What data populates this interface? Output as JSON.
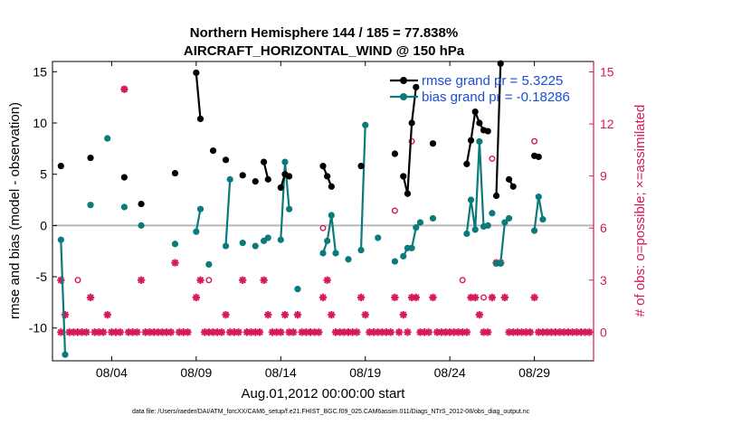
{
  "chart_data": {
    "type": "line",
    "title": [
      "Northern Hemisphere 144 / 185 = 77.838%",
      "AIRCRAFT_HORIZONTAL_WIND @ 150 hPa"
    ],
    "xlabel": "Aug.01,2012 00:00:00 start",
    "ylabel_left": "rmse and bias (model - observation)",
    "ylabel_right": "# of obs: o=possible; ×=assimilated",
    "xlim": [
      0.5,
      32.5
    ],
    "ylim_left": [
      -13.2,
      16
    ],
    "ylim_right": [
      -1.65,
      15.6
    ],
    "x_ticks": [
      4,
      9,
      14,
      19,
      24,
      29
    ],
    "x_tick_labels": [
      "08/04",
      "08/09",
      "08/14",
      "08/19",
      "08/24",
      "08/29"
    ],
    "y_ticks_left": [
      -10,
      -5,
      0,
      5,
      10,
      15
    ],
    "y_ticks_right": [
      0,
      3,
      6,
      9,
      12,
      15
    ],
    "colors": {
      "rmse": "#000000",
      "bias": "#0a7a7a",
      "obs": "#d6185e",
      "zero": "#b8b8b8",
      "legend_text": "#1a4fd6"
    },
    "legend": [
      {
        "label": "rmse grand pr = 5.3225",
        "series": "rmse"
      },
      {
        "label": "bias grand pr = -0.18286",
        "series": "bias"
      }
    ],
    "series": [
      {
        "name": "rmse",
        "axis": "left",
        "segments": [
          [
            [
              1.0,
              5.8
            ]
          ],
          [
            [
              2.75,
              6.6
            ]
          ],
          [
            [
              4.75,
              4.7
            ]
          ],
          [
            [
              5.75,
              2.1
            ]
          ],
          [
            [
              7.75,
              5.1
            ]
          ],
          [
            [
              9.0,
              14.9
            ],
            [
              9.25,
              10.4
            ]
          ],
          [
            [
              10.0,
              7.3
            ]
          ],
          [
            [
              10.75,
              6.4
            ]
          ],
          [
            [
              11.75,
              4.9
            ]
          ],
          [
            [
              12.5,
              4.3
            ]
          ],
          [
            [
              13.0,
              6.2
            ],
            [
              13.25,
              4.5
            ]
          ],
          [
            [
              14.0,
              3.7
            ],
            [
              14.25,
              5.0
            ],
            [
              14.5,
              4.8
            ]
          ],
          [
            [
              16.5,
              5.8
            ],
            [
              16.75,
              4.8
            ],
            [
              17.0,
              3.8
            ]
          ],
          [
            [
              18.75,
              5.8
            ]
          ],
          [
            [
              20.75,
              7.0
            ]
          ],
          [
            [
              21.25,
              4.8
            ],
            [
              21.5,
              3.1
            ],
            [
              21.75,
              10.0
            ],
            [
              22.0,
              13.5
            ]
          ],
          [
            [
              23.0,
              8.0
            ]
          ],
          [
            [
              25.0,
              6.0
            ],
            [
              25.25,
              8.3
            ],
            [
              25.5,
              11.1
            ],
            [
              25.75,
              10.0
            ],
            [
              26.0,
              9.3
            ],
            [
              26.25,
              9.2
            ]
          ],
          [
            [
              26.75,
              2.9
            ],
            [
              27.0,
              15.8
            ]
          ],
          [
            [
              27.5,
              4.5
            ],
            [
              27.75,
              3.8
            ]
          ],
          [
            [
              29.0,
              6.8
            ],
            [
              29.25,
              6.7
            ]
          ]
        ]
      },
      {
        "name": "bias",
        "axis": "left",
        "segments": [
          [
            [
              1.0,
              -1.4
            ],
            [
              1.25,
              -12.6
            ]
          ],
          [
            [
              2.75,
              2.0
            ]
          ],
          [
            [
              3.75,
              8.5
            ]
          ],
          [
            [
              4.75,
              1.8
            ]
          ],
          [
            [
              5.75,
              0.0
            ]
          ],
          [
            [
              7.75,
              -1.8
            ]
          ],
          [
            [
              9.0,
              -0.6
            ],
            [
              9.25,
              1.6
            ]
          ],
          [
            [
              9.75,
              -3.8
            ]
          ],
          [
            [
              10.75,
              -2.0
            ],
            [
              11.0,
              4.5
            ]
          ],
          [
            [
              11.75,
              -1.7
            ]
          ],
          [
            [
              12.5,
              -2.0
            ]
          ],
          [
            [
              13.0,
              -1.5
            ],
            [
              13.25,
              -1.2
            ]
          ],
          [
            [
              14.0,
              -1.4
            ],
            [
              14.25,
              6.2
            ],
            [
              14.5,
              1.6
            ]
          ],
          [
            [
              15.0,
              -6.2
            ]
          ],
          [
            [
              16.5,
              -2.7
            ],
            [
              16.75,
              -1.5
            ],
            [
              17.0,
              1.0
            ],
            [
              17.25,
              -2.7
            ]
          ],
          [
            [
              18.0,
              -3.3
            ]
          ],
          [
            [
              18.75,
              -2.4
            ],
            [
              19.0,
              9.8
            ]
          ],
          [
            [
              19.75,
              -1.2
            ]
          ],
          [
            [
              20.75,
              -3.5
            ]
          ],
          [
            [
              21.25,
              -3.0
            ],
            [
              21.5,
              -2.2
            ],
            [
              21.75,
              -2.2
            ],
            [
              22.0,
              -0.2
            ],
            [
              22.25,
              0.3
            ]
          ],
          [
            [
              23.0,
              0.7
            ]
          ],
          [
            [
              25.0,
              -0.8
            ],
            [
              25.25,
              2.5
            ],
            [
              25.5,
              -0.4
            ],
            [
              25.75,
              8.2
            ],
            [
              26.0,
              -0.1
            ],
            [
              26.25,
              0.0
            ]
          ],
          [
            [
              26.5,
              1.2
            ]
          ],
          [
            [
              26.75,
              -3.7
            ],
            [
              27.0,
              -3.7
            ],
            [
              27.25,
              0.3
            ],
            [
              27.5,
              0.7
            ]
          ],
          [
            [
              29.0,
              -0.5
            ],
            [
              29.25,
              2.8
            ],
            [
              29.5,
              0.6
            ]
          ]
        ]
      },
      {
        "name": "obs_possible",
        "axis": "right",
        "marker": "circle",
        "points": [
          [
            2.0,
            3
          ],
          [
            4.75,
            14
          ],
          [
            9.75,
            3
          ],
          [
            16.5,
            6
          ],
          [
            20.75,
            7
          ],
          [
            21.75,
            11
          ],
          [
            24.75,
            3
          ],
          [
            26.0,
            2
          ],
          [
            26.5,
            10
          ],
          [
            29.0,
            11
          ]
        ]
      },
      {
        "name": "obs_assimilated",
        "axis": "right",
        "marker": "asterisk",
        "points": [
          [
            1.0,
            3
          ],
          [
            1.0,
            0
          ],
          [
            1.25,
            1
          ],
          [
            1.5,
            0
          ],
          [
            1.75,
            0
          ],
          [
            2.0,
            0
          ],
          [
            2.25,
            0
          ],
          [
            2.5,
            0
          ],
          [
            2.75,
            2
          ],
          [
            3.0,
            0
          ],
          [
            3.25,
            0
          ],
          [
            3.5,
            0
          ],
          [
            3.75,
            1
          ],
          [
            4.0,
            0
          ],
          [
            4.25,
            0
          ],
          [
            4.5,
            0
          ],
          [
            4.75,
            14
          ],
          [
            5.0,
            0
          ],
          [
            5.25,
            0
          ],
          [
            5.5,
            0
          ],
          [
            5.75,
            3
          ],
          [
            6.0,
            0
          ],
          [
            6.25,
            0
          ],
          [
            6.5,
            0
          ],
          [
            6.75,
            0
          ],
          [
            7.0,
            0
          ],
          [
            7.25,
            0
          ],
          [
            7.5,
            0
          ],
          [
            7.75,
            4
          ],
          [
            8.0,
            0
          ],
          [
            8.25,
            0
          ],
          [
            8.5,
            0
          ],
          [
            9.0,
            2
          ],
          [
            9.25,
            3
          ],
          [
            9.5,
            0
          ],
          [
            9.75,
            0
          ],
          [
            10.0,
            0
          ],
          [
            10.25,
            0
          ],
          [
            10.5,
            0
          ],
          [
            10.75,
            1
          ],
          [
            11.0,
            0
          ],
          [
            11.25,
            0
          ],
          [
            11.5,
            0
          ],
          [
            11.75,
            3
          ],
          [
            12.0,
            0
          ],
          [
            12.25,
            0
          ],
          [
            12.5,
            0
          ],
          [
            12.75,
            0
          ],
          [
            13.0,
            3
          ],
          [
            13.25,
            1
          ],
          [
            13.5,
            0
          ],
          [
            13.75,
            0
          ],
          [
            14.0,
            0
          ],
          [
            14.25,
            1
          ],
          [
            14.5,
            0
          ],
          [
            14.75,
            0
          ],
          [
            15.0,
            1
          ],
          [
            15.25,
            0
          ],
          [
            15.5,
            0
          ],
          [
            15.75,
            0
          ],
          [
            16.0,
            0
          ],
          [
            16.25,
            0
          ],
          [
            16.5,
            2
          ],
          [
            16.75,
            3
          ],
          [
            17.0,
            1
          ],
          [
            17.25,
            0
          ],
          [
            17.5,
            0
          ],
          [
            17.75,
            0
          ],
          [
            18.0,
            0
          ],
          [
            18.25,
            0
          ],
          [
            18.5,
            0
          ],
          [
            18.75,
            2
          ],
          [
            19.0,
            1
          ],
          [
            19.25,
            0
          ],
          [
            19.5,
            0
          ],
          [
            19.75,
            0
          ],
          [
            20.0,
            0
          ],
          [
            20.25,
            0
          ],
          [
            20.5,
            0
          ],
          [
            20.75,
            2
          ],
          [
            21.0,
            0
          ],
          [
            21.25,
            1
          ],
          [
            21.5,
            0
          ],
          [
            21.75,
            2
          ],
          [
            22.0,
            2
          ],
          [
            22.25,
            0
          ],
          [
            22.5,
            0
          ],
          [
            22.75,
            0
          ],
          [
            23.0,
            2
          ],
          [
            23.25,
            0
          ],
          [
            23.5,
            0
          ],
          [
            23.75,
            0
          ],
          [
            24.0,
            0
          ],
          [
            24.25,
            0
          ],
          [
            24.5,
            0
          ],
          [
            24.75,
            0
          ],
          [
            25.0,
            0
          ],
          [
            25.25,
            2
          ],
          [
            25.5,
            2
          ],
          [
            25.75,
            1
          ],
          [
            26.0,
            0
          ],
          [
            26.25,
            0
          ],
          [
            26.5,
            2
          ],
          [
            26.75,
            4
          ],
          [
            27.0,
            4
          ],
          [
            27.25,
            2
          ],
          [
            27.5,
            0
          ],
          [
            27.75,
            0
          ],
          [
            28.0,
            0
          ],
          [
            28.25,
            0
          ],
          [
            28.5,
            0
          ],
          [
            28.75,
            0
          ],
          [
            29.0,
            2
          ],
          [
            29.25,
            0
          ],
          [
            29.5,
            0
          ],
          [
            29.75,
            0
          ],
          [
            30.0,
            0
          ],
          [
            30.25,
            0
          ],
          [
            30.5,
            0
          ],
          [
            30.75,
            0
          ],
          [
            31.0,
            0
          ],
          [
            31.25,
            0
          ],
          [
            31.5,
            0
          ],
          [
            31.75,
            0
          ],
          [
            32.0,
            0
          ],
          [
            32.25,
            0
          ]
        ]
      }
    ]
  },
  "footer": "data file: /Users/raeder/DAI/ATM_forcXX/CAM6_setup/f.e21.FHIST_BGC.f09_025.CAM6assim.011/Diags_NTrS_2012-08/obs_diag_output.nc"
}
